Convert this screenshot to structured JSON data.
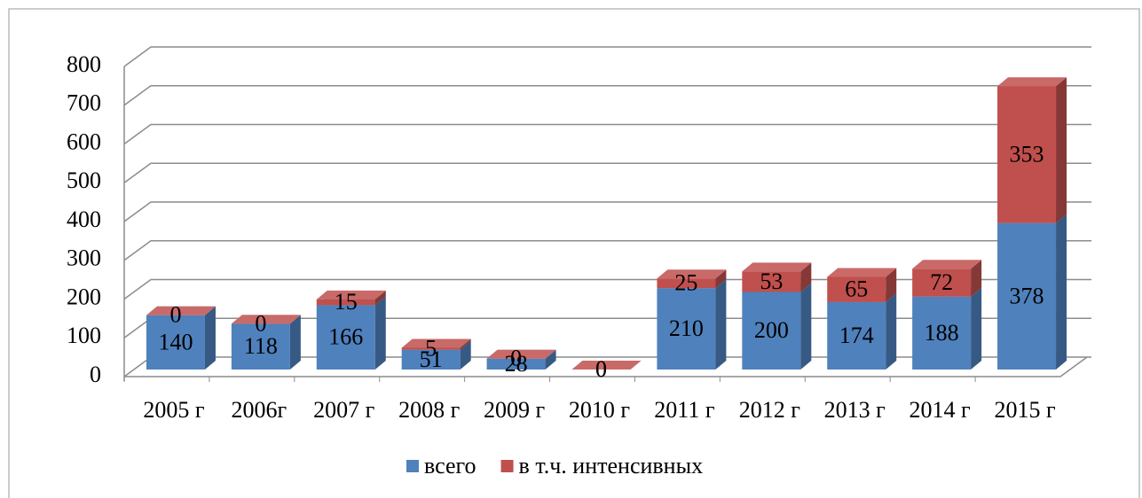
{
  "chart_data": {
    "type": "bar3d_stacked",
    "categories": [
      "2005 г",
      "2006г",
      "2007 г",
      "2008 г",
      "2009 г",
      "2010 г",
      "2011 г",
      "2012 г",
      "2013 г",
      "2014 г",
      "2015 г"
    ],
    "series": [
      {
        "name": "всего",
        "color": "#4f81bd",
        "values": [
          140,
          118,
          166,
          51,
          28,
          0,
          210,
          200,
          174,
          188,
          378
        ]
      },
      {
        "name": "в т.ч. интенсивных",
        "color": "#c0504d",
        "values": [
          0,
          0,
          15,
          5,
          0,
          0,
          25,
          53,
          65,
          72,
          353
        ]
      }
    ],
    "ylim": [
      0,
      800
    ],
    "yticks": [
      0,
      100,
      200,
      300,
      400,
      500,
      600,
      700,
      800
    ],
    "grid": true,
    "legend": "bottom"
  }
}
